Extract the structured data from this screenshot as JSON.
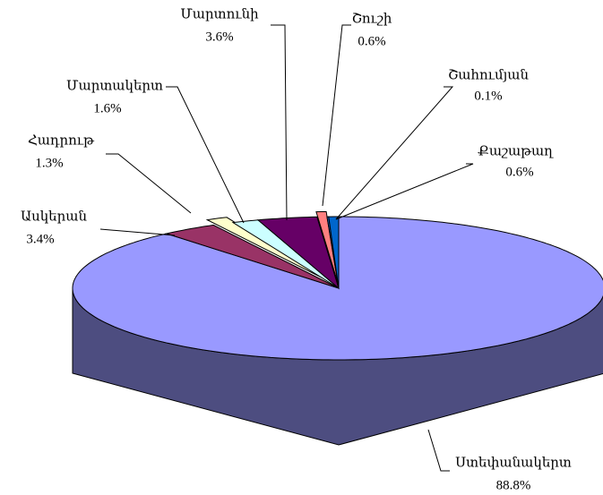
{
  "chart_data": {
    "type": "pie",
    "categories": [
      "Ստեփանակերտ",
      "Ասկերան",
      "Հադրութ",
      "Մարտակերտ",
      "Մարտունի",
      "Շուշի",
      "Շահումյան",
      "Քաշաթաղ"
    ],
    "values": [
      88.8,
      3.4,
      1.3,
      1.6,
      3.6,
      0.6,
      0.1,
      0.6
    ],
    "value_labels": [
      "88.8%",
      "3.4%",
      "1.3%",
      "1.6%",
      "3.6%",
      "0.6%",
      "0.1%",
      "0.6%"
    ],
    "colors": [
      "#9999ff",
      "#993366",
      "#ffffcc",
      "#ccffff",
      "#660066",
      "#ff8080",
      "#0066cc",
      "#0066cc"
    ]
  }
}
